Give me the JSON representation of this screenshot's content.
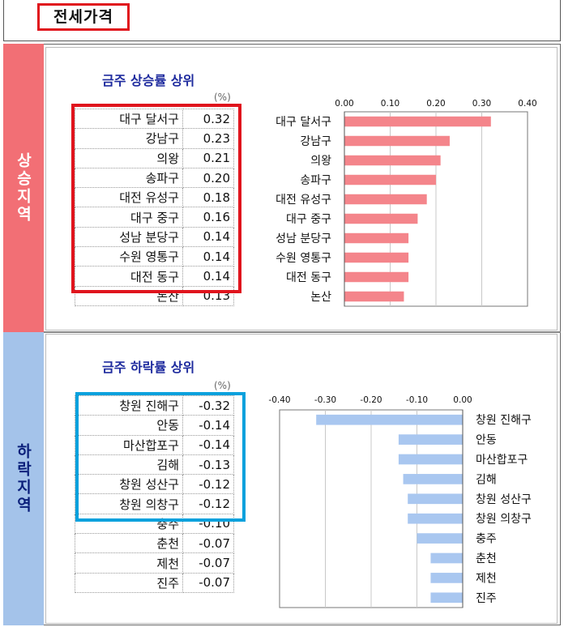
{
  "header": {
    "title": "전세가격"
  },
  "sections": {
    "rise": {
      "band_label": "상승지역",
      "title": "금주 상승률 상위",
      "unit": "(%)"
    },
    "fall": {
      "band_label": "하락지역",
      "title": "금주 하락률 상위",
      "unit": "(%)"
    }
  },
  "colors": {
    "rise_bar": "#f4858b",
    "fall_bar": "#a9c7f0",
    "rise_band": "#f26f75",
    "fall_band": "#a4c3ea",
    "highlight_red": "#e0141d",
    "highlight_blue": "#0aa1dd"
  },
  "tables": {
    "rise": [
      {
        "name": "대구 달서구",
        "value": "0.32"
      },
      {
        "name": "강남구",
        "value": "0.23"
      },
      {
        "name": "의왕",
        "value": "0.21"
      },
      {
        "name": "송파구",
        "value": "0.20"
      },
      {
        "name": "대전 유성구",
        "value": "0.18"
      },
      {
        "name": "대구 중구",
        "value": "0.16"
      },
      {
        "name": "성남 분당구",
        "value": "0.14"
      },
      {
        "name": "수원 영통구",
        "value": "0.14"
      },
      {
        "name": "대전 동구",
        "value": "0.14"
      },
      {
        "name": "논산",
        "value": "0.13"
      }
    ],
    "fall": [
      {
        "name": "창원 진해구",
        "value": "-0.32"
      },
      {
        "name": "안동",
        "value": "-0.14"
      },
      {
        "name": "마산합포구",
        "value": "-0.14"
      },
      {
        "name": "김해",
        "value": "-0.13"
      },
      {
        "name": "창원 성산구",
        "value": "-0.12"
      },
      {
        "name": "창원 의창구",
        "value": "-0.12"
      },
      {
        "name": "충주",
        "value": "-0.10"
      },
      {
        "name": "춘천",
        "value": "-0.07"
      },
      {
        "name": "제천",
        "value": "-0.07"
      },
      {
        "name": "진주",
        "value": "-0.07"
      }
    ]
  },
  "chart_data": [
    {
      "type": "bar",
      "orientation": "horizontal",
      "categories": [
        "대구 달서구",
        "강남구",
        "의왕",
        "송파구",
        "대전 유성구",
        "대구 중구",
        "성남 분당구",
        "수원 영통구",
        "대전 동구",
        "논산"
      ],
      "values": [
        0.32,
        0.23,
        0.21,
        0.2,
        0.18,
        0.16,
        0.14,
        0.14,
        0.14,
        0.13
      ],
      "ticks": [
        "0.00",
        "0.10",
        "0.20",
        "0.30",
        "0.40"
      ],
      "xlim": [
        0,
        0.4
      ],
      "grid": true
    },
    {
      "type": "bar",
      "orientation": "horizontal",
      "categories": [
        "창원 진해구",
        "안동",
        "마산합포구",
        "김해",
        "창원 성산구",
        "창원 의창구",
        "충주",
        "춘천",
        "제천",
        "진주"
      ],
      "values": [
        -0.32,
        -0.14,
        -0.14,
        -0.13,
        -0.12,
        -0.12,
        -0.1,
        -0.07,
        -0.07,
        -0.07
      ],
      "ticks": [
        "-0.40",
        "-0.30",
        "-0.20",
        "-0.10",
        "0.00"
      ],
      "xlim": [
        -0.4,
        0
      ],
      "grid": true
    }
  ]
}
